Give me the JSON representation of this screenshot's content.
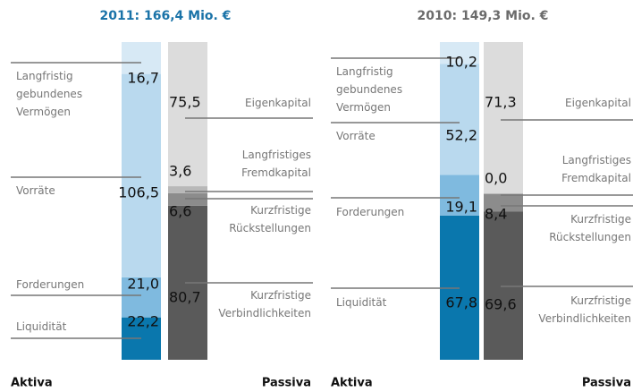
{
  "chart_data": [
    {
      "type": "balance",
      "title": "2011: 166,4 Mio. €",
      "title_color": "#1a73a8",
      "ylim": [
        0,
        166.4
      ],
      "stacks": [
        {
          "label": "Aktiva",
          "segments": [
            {
              "name": "Liquidität",
              "value": 22.2,
              "value_label": "22,2",
              "color": "#0a77ad"
            },
            {
              "name": "Forderungen",
              "value": 21.0,
              "value_label": "21,0",
              "color": "#7fbadf"
            },
            {
              "name": "Vorräte",
              "value": 106.5,
              "value_label": "106,5",
              "color": "#b9d9ee"
            },
            {
              "name": "Langfristig gebundenes Vermögen",
              "value": 16.7,
              "value_label": "16,7",
              "color": "#d7e9f5"
            }
          ]
        },
        {
          "label": "Passiva",
          "segments": [
            {
              "name": "Kurzfristige Verbindlichkeiten",
              "value": 80.7,
              "value_label": "80,7",
              "color": "#5a5a5a"
            },
            {
              "name": "Kurzfristige Rückstellungen",
              "value": 6.6,
              "value_label": "6,6",
              "color": "#8c8c8c"
            },
            {
              "name": "Langfristiges Fremdkapital",
              "value": 3.6,
              "value_label": "3,6",
              "color": "#b8b8b8"
            },
            {
              "name": "Eigenkapital",
              "value": 75.5,
              "value_label": "75,5",
              "color": "#dcdcdc"
            }
          ]
        }
      ]
    },
    {
      "type": "balance",
      "title": "2010: 149,3 Mio. €",
      "title_color": "#6b6b6b",
      "ylim": [
        0,
        149.3
      ],
      "stacks": [
        {
          "label": "Aktiva",
          "segments": [
            {
              "name": "Liquidität",
              "value": 67.8,
              "value_label": "67,8",
              "color": "#0a77ad"
            },
            {
              "name": "Forderungen",
              "value": 19.1,
              "value_label": "19,1",
              "color": "#7fbadf"
            },
            {
              "name": "Vorräte",
              "value": 52.2,
              "value_label": "52,2",
              "color": "#b9d9ee"
            },
            {
              "name": "Langfristig gebundenes Vermögen",
              "value": 10.2,
              "value_label": "10,2",
              "color": "#d7e9f5"
            }
          ]
        },
        {
          "label": "Passiva",
          "segments": [
            {
              "name": "Kurzfristige Verbindlichkeiten",
              "value": 69.6,
              "value_label": "69,6",
              "color": "#5a5a5a"
            },
            {
              "name": "Kurzfristige Rückstellungen",
              "value": 8.4,
              "value_label": "8,4",
              "color": "#8c8c8c"
            },
            {
              "name": "Langfristiges Fremdkapital",
              "value": 0.0,
              "value_label": "0,0",
              "color": "#b8b8b8"
            },
            {
              "name": "Eigenkapital",
              "value": 71.3,
              "value_label": "71,3",
              "color": "#dcdcdc"
            }
          ]
        }
      ]
    }
  ]
}
